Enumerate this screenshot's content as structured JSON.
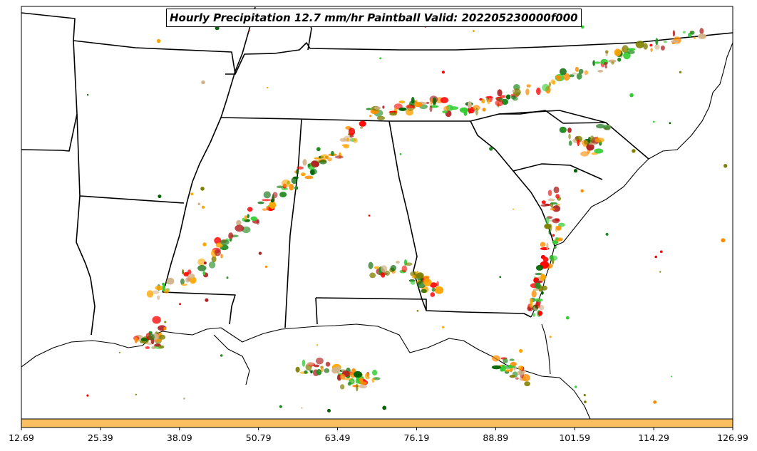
{
  "title": "Hourly Precipitation 12.7 mm/hr Paintball Valid: 202205230000f000",
  "colorbar": {
    "color": "#fcbf5f",
    "tick_labels": [
      "12.69",
      "25.39",
      "38.09",
      "50.79",
      "63.49",
      "76.19",
      "88.89",
      "101.59",
      "114.29",
      "126.99"
    ]
  },
  "colors": {
    "ensemble_members": [
      "#ff0000",
      "#ff8c00",
      "#ffa500",
      "#228b22",
      "#32cd32",
      "#006400",
      "#b22222",
      "#808000",
      "#d2b48c"
    ],
    "map_lines": "#000000",
    "background": "#ffffff"
  }
}
